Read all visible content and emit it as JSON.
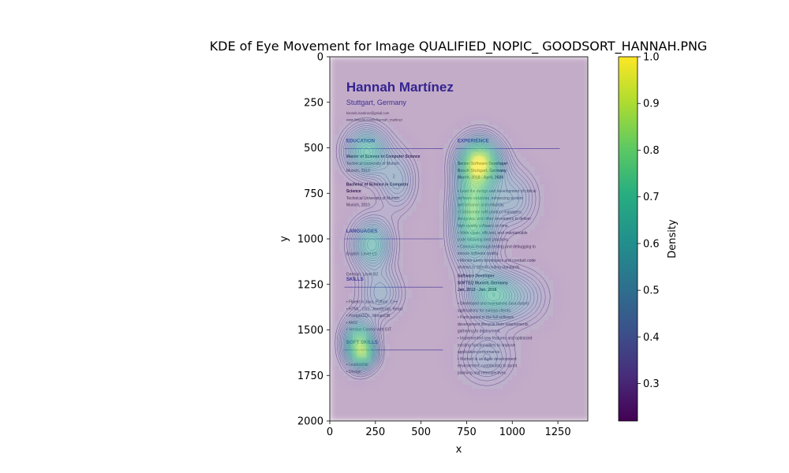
{
  "chart_data": {
    "type": "heatmap",
    "title": "KDE of Eye Movement for Image QUALIFIED_NOPIC_ GOODSORT_HANNAH.PNG",
    "xlabel": "x",
    "ylabel": "y",
    "xlim": [
      0,
      1414
    ],
    "ylim": [
      2000,
      0
    ],
    "xticks": [
      0,
      250,
      500,
      750,
      1000,
      1250
    ],
    "yticks": [
      0,
      250,
      500,
      750,
      1000,
      1250,
      1500,
      1750,
      2000
    ],
    "colorbar": {
      "label": "Density",
      "range": [
        0.22,
        1.0
      ],
      "ticks": [
        0.3,
        0.4,
        0.5,
        0.6,
        0.7,
        0.8,
        0.9,
        1.0
      ],
      "colormap": "viridis"
    },
    "background_image": {
      "name": "Hannah Martínez",
      "location": "Stuttgart, Germany",
      "contact": [
        "hannah.martinez@gmail.com",
        "www.linkedin.com/in/hannah_martinez"
      ],
      "left_sections": [
        {
          "heading": "EDUCATION",
          "y": 470,
          "lines": [
            {
              "text": "Master of Science in Computer Science",
              "bold": true
            },
            {
              "text": "Technical University of Munich"
            },
            {
              "text": "Munich, 2013"
            },
            {
              "text": ""
            },
            {
              "text": "Bachelor of Science in Computer",
              "bold": true
            },
            {
              "text": "Science",
              "bold": true
            },
            {
              "text": "Technical University of Munich"
            },
            {
              "text": "Munich, 2010"
            }
          ]
        },
        {
          "heading": "LANGUAGES",
          "y": 965,
          "lines": [
            {
              "text": ""
            },
            {
              "text": "English: Level C1"
            },
            {
              "text": ""
            },
            {
              "text": ""
            },
            {
              "text": "German: Level B2"
            }
          ]
        },
        {
          "heading": "SKILLS",
          "y": 1230,
          "lines": [
            {
              "text": ""
            },
            {
              "text": "•  Fluent in Java, Python, C++"
            },
            {
              "text": "•  HTML, CSS, JavaScript, React"
            },
            {
              "text": "•  PostgreSQL, MongoDB"
            },
            {
              "text": "•  AWS"
            },
            {
              "text": "•  Version Control with GIT"
            }
          ]
        },
        {
          "heading": "SOFT SKILLS",
          "y": 1575,
          "lines": [
            {
              "text": ""
            },
            {
              "text": "•  Leadership"
            },
            {
              "text": "•  Design"
            }
          ]
        }
      ],
      "right_sections": [
        {
          "heading": "EXPERIENCE",
          "y": 470,
          "lines": [
            {
              "text": ""
            },
            {
              "text": "Senior Software Developer",
              "bold": true
            },
            {
              "text": "Bosch Stuttgart, Germany",
              "bold": true
            },
            {
              "text": "March, 2018 - April, 2024",
              "bold": true
            },
            {
              "text": ""
            },
            {
              "text": "•  Lead the design and development of critical"
            },
            {
              "text": "   software solutions, enhancing system"
            },
            {
              "text": "   performance and reliability."
            },
            {
              "text": "•  Collaborate with product managers,"
            },
            {
              "text": "   designers, and other developers to deliver"
            },
            {
              "text": "   high-quality software on time."
            },
            {
              "text": "•  Write clean, efficient, and maintainable"
            },
            {
              "text": "   code following best practices."
            },
            {
              "text": "•  Conduct thorough testing and debugging to"
            },
            {
              "text": "   ensure software quality."
            },
            {
              "text": "•  Mentor junior developers and conduct code"
            },
            {
              "text": "   reviews to uphold coding standards."
            }
          ]
        },
        {
          "heading": "",
          "y": 1210,
          "lines": [
            {
              "text": "Software Developer",
              "bold": true
            },
            {
              "text": "SOFTEQ Munich, Germany",
              "bold": true
            },
            {
              "text": "Jan, 2013 - Jan, 2018",
              "bold": true
            },
            {
              "text": ""
            },
            {
              "text": "•  Developed and maintained Java-based"
            },
            {
              "text": "   applications for various clients."
            },
            {
              "text": "•  Participated in the full software"
            },
            {
              "text": "   development lifecycle from requirements"
            },
            {
              "text": "   gathering to deployment."
            },
            {
              "text": "•  Implemented new features and optimized"
            },
            {
              "text": "   existing functionalities to improve"
            },
            {
              "text": "   application performance."
            },
            {
              "text": "•  Worked in an Agile development"
            },
            {
              "text": "   environment, contributing to sprint"
            },
            {
              "text": "   planning and retrospectives."
            }
          ]
        }
      ]
    },
    "density_hotspots": [
      {
        "x": 200,
        "y": 520,
        "sx": 80,
        "sy": 90,
        "w": 0.6
      },
      {
        "x": 230,
        "y": 1030,
        "sx": 75,
        "sy": 95,
        "w": 0.55
      },
      {
        "x": 160,
        "y": 1570,
        "sx": 60,
        "sy": 90,
        "w": 0.75
      },
      {
        "x": 190,
        "y": 1640,
        "sx": 50,
        "sy": 50,
        "w": 0.35
      },
      {
        "x": 370,
        "y": 680,
        "sx": 70,
        "sy": 110,
        "w": 0.3
      },
      {
        "x": 280,
        "y": 1300,
        "sx": 80,
        "sy": 90,
        "w": 0.3
      },
      {
        "x": 820,
        "y": 580,
        "sx": 80,
        "sy": 90,
        "w": 1.0
      },
      {
        "x": 780,
        "y": 800,
        "sx": 70,
        "sy": 110,
        "w": 0.6
      },
      {
        "x": 790,
        "y": 1000,
        "sx": 80,
        "sy": 120,
        "w": 0.5
      },
      {
        "x": 880,
        "y": 1310,
        "sx": 90,
        "sy": 90,
        "w": 0.55
      },
      {
        "x": 1050,
        "y": 1320,
        "sx": 100,
        "sy": 100,
        "w": 0.25
      },
      {
        "x": 1000,
        "y": 780,
        "sx": 90,
        "sy": 110,
        "w": 0.3
      },
      {
        "x": 860,
        "y": 1650,
        "sx": 100,
        "sy": 100,
        "w": 0.25
      }
    ]
  }
}
